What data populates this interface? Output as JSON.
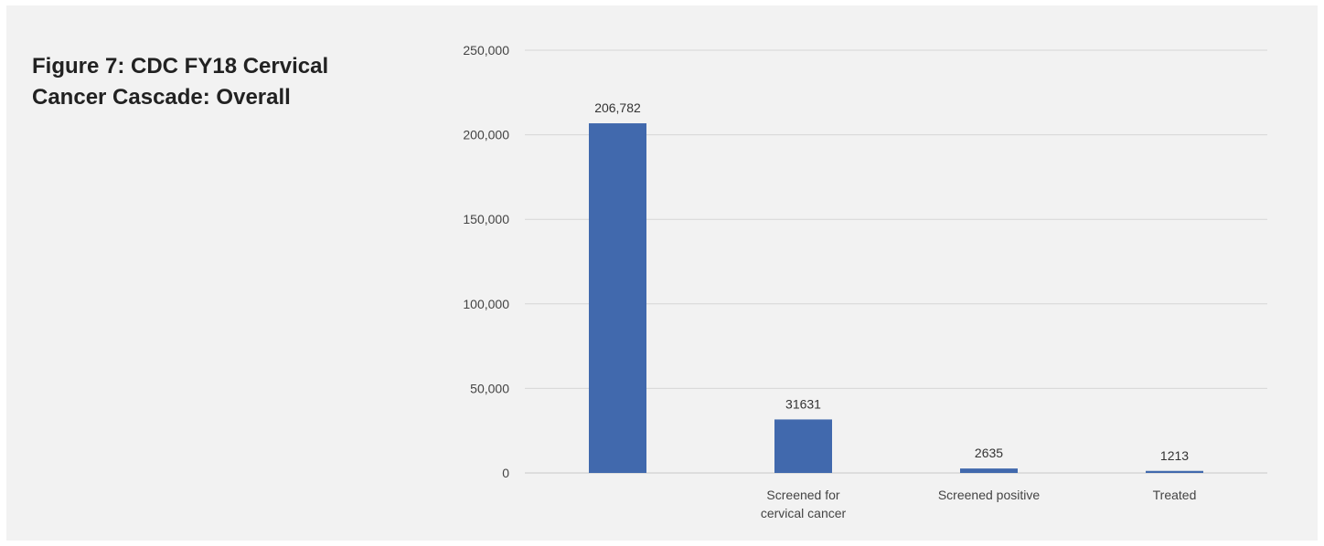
{
  "page": {
    "title": "Figure 7: CDC FY18 Cervical Cancer Cascade: Overall"
  },
  "chart_data": {
    "type": "bar",
    "categories": [
      "",
      "Screened for cervical cancer",
      "Screened positive",
      "Treated"
    ],
    "values": [
      206782,
      31631,
      2635,
      1213
    ],
    "data_labels": [
      "206,782",
      "31631",
      "2635",
      "1213"
    ],
    "ylim": [
      0,
      250000
    ],
    "y_ticks": [
      0,
      50000,
      100000,
      150000,
      200000,
      250000
    ],
    "y_tick_labels": [
      "0",
      "50,000",
      "100,000",
      "150,000",
      "200,000",
      "250,000"
    ],
    "bar_color": "#4169ad",
    "grid": true,
    "legend": "none"
  }
}
